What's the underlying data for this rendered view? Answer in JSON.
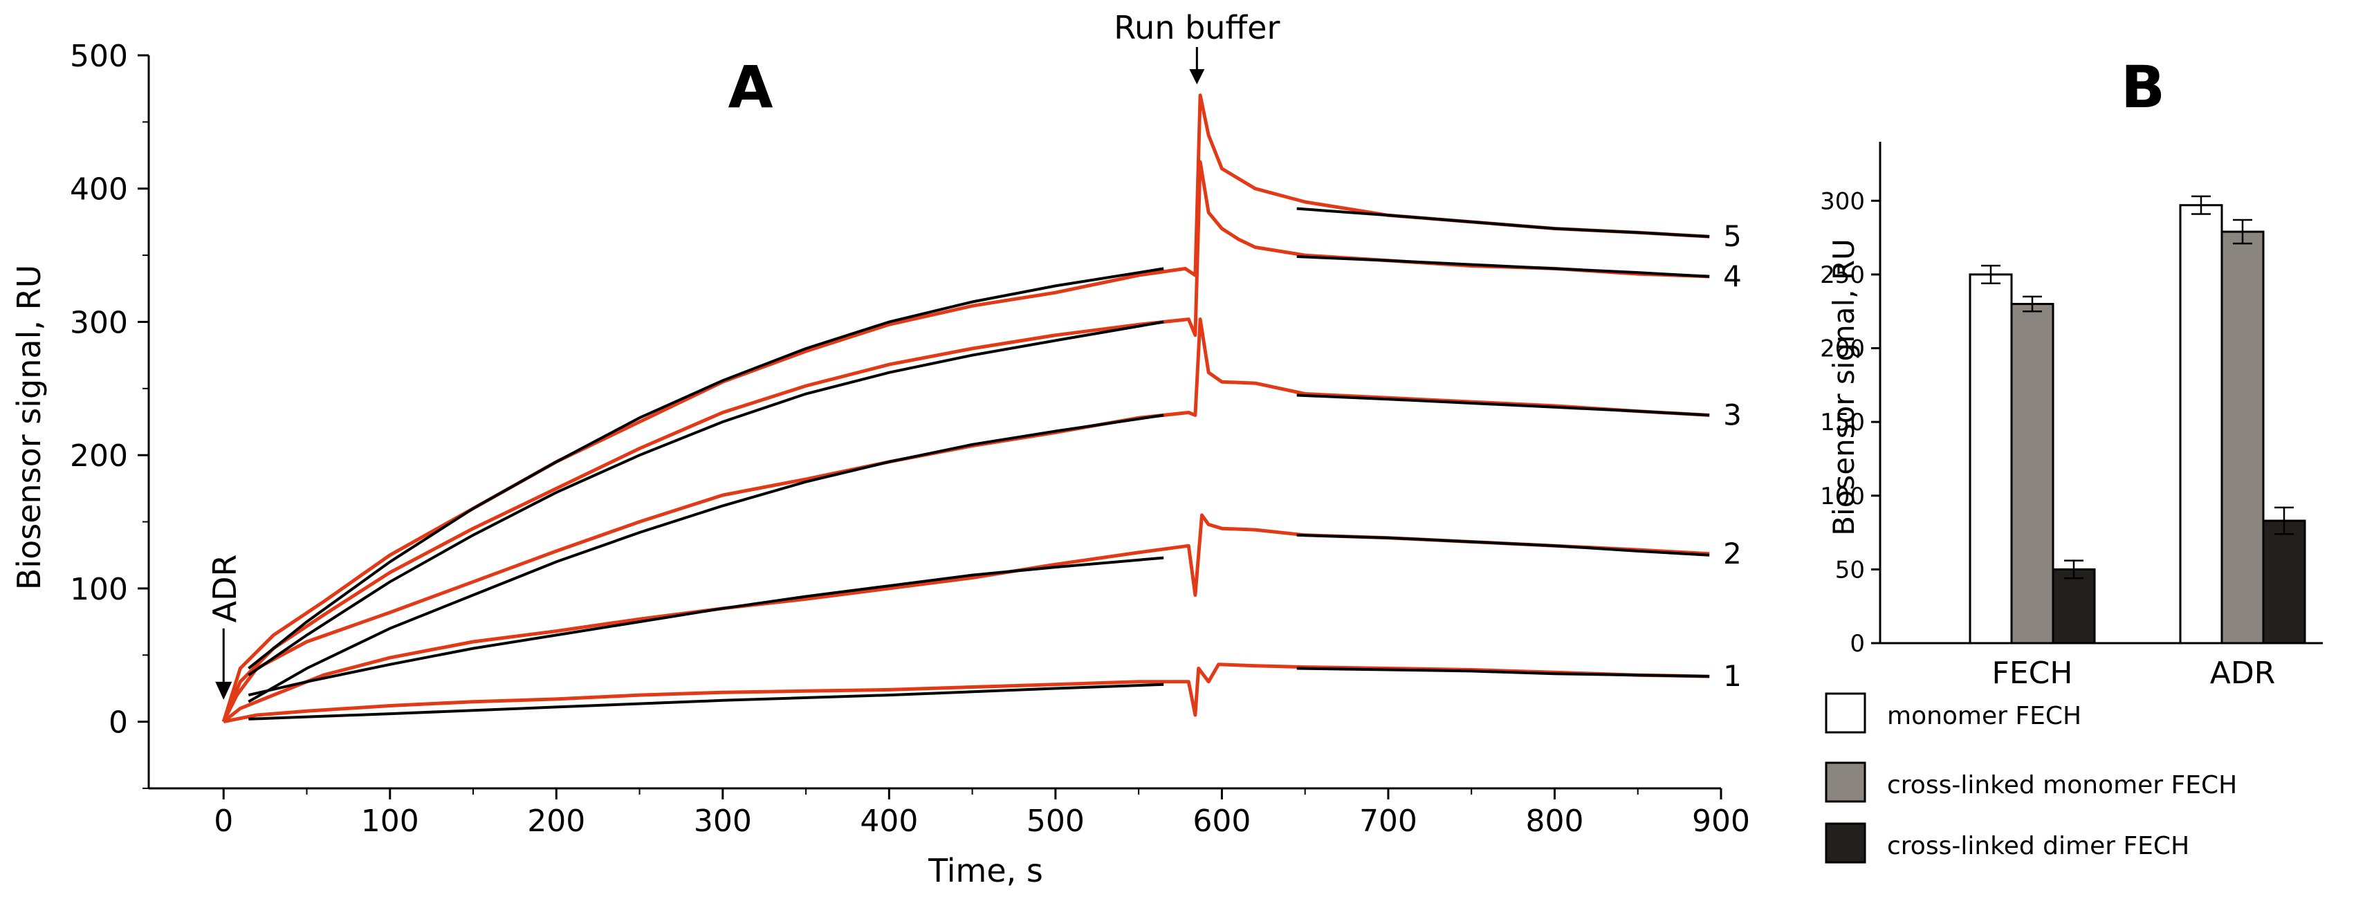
{
  "chart_data": [
    {
      "type": "line",
      "panel": "A",
      "title": "",
      "xlabel": "Time, s",
      "ylabel": "Biosensor signal, RU",
      "xlim": [
        -45,
        900
      ],
      "ylim": [
        -50,
        500
      ],
      "xticks": [
        0,
        100,
        200,
        300,
        400,
        500,
        600,
        700,
        800,
        900
      ],
      "yticks": [
        0,
        100,
        200,
        300,
        400,
        500
      ],
      "annotations": {
        "injection": {
          "label": "ADR",
          "x": 0
        },
        "wash": {
          "label": "Run buffer",
          "x": 585
        }
      },
      "series": [
        {
          "name": "1",
          "experimental": [
            [
              0,
              0
            ],
            [
              20,
              5
            ],
            [
              50,
              8
            ],
            [
              100,
              12
            ],
            [
              150,
              15
            ],
            [
              200,
              17
            ],
            [
              250,
              20
            ],
            [
              300,
              22
            ],
            [
              350,
              23
            ],
            [
              400,
              24
            ],
            [
              450,
              26
            ],
            [
              500,
              28
            ],
            [
              550,
              30
            ],
            [
              580,
              30
            ],
            [
              584,
              5
            ],
            [
              586,
              40
            ],
            [
              592,
              30
            ],
            [
              598,
              43
            ],
            [
              620,
              42
            ],
            [
              650,
              41
            ],
            [
              700,
              40
            ],
            [
              750,
              39
            ],
            [
              800,
              37
            ],
            [
              850,
              35
            ],
            [
              893,
              34
            ]
          ],
          "fit_association": [
            [
              15,
              2
            ],
            [
              100,
              6
            ],
            [
              200,
              11
            ],
            [
              300,
              16
            ],
            [
              400,
              20
            ],
            [
              500,
              25
            ],
            [
              565,
              28
            ]
          ],
          "fit_dissociation": [
            [
              645,
              40
            ],
            [
              700,
              39
            ],
            [
              750,
              38
            ],
            [
              800,
              36
            ],
            [
              850,
              35
            ],
            [
              893,
              34
            ]
          ]
        },
        {
          "name": "2",
          "experimental": [
            [
              0,
              0
            ],
            [
              10,
              10
            ],
            [
              30,
              20
            ],
            [
              60,
              35
            ],
            [
              100,
              48
            ],
            [
              150,
              60
            ],
            [
              200,
              68
            ],
            [
              250,
              77
            ],
            [
              300,
              85
            ],
            [
              350,
              92
            ],
            [
              400,
              100
            ],
            [
              450,
              108
            ],
            [
              500,
              118
            ],
            [
              550,
              127
            ],
            [
              580,
              132
            ],
            [
              584,
              95
            ],
            [
              588,
              155
            ],
            [
              592,
              148
            ],
            [
              600,
              145
            ],
            [
              620,
              144
            ],
            [
              650,
              140
            ],
            [
              700,
              138
            ],
            [
              750,
              135
            ],
            [
              800,
              132
            ],
            [
              850,
              129
            ],
            [
              893,
              126
            ]
          ],
          "fit_association": [
            [
              15,
              20
            ],
            [
              50,
              30
            ],
            [
              100,
              43
            ],
            [
              150,
              55
            ],
            [
              200,
              65
            ],
            [
              250,
              75
            ],
            [
              300,
              85
            ],
            [
              350,
              94
            ],
            [
              400,
              102
            ],
            [
              450,
              110
            ],
            [
              500,
              116
            ],
            [
              565,
              123
            ]
          ],
          "fit_dissociation": [
            [
              645,
              140
            ],
            [
              700,
              138
            ],
            [
              750,
              135
            ],
            [
              800,
              132
            ],
            [
              850,
              128
            ],
            [
              893,
              125
            ]
          ]
        },
        {
          "name": "3",
          "experimental": [
            [
              0,
              0
            ],
            [
              8,
              20
            ],
            [
              20,
              40
            ],
            [
              50,
              60
            ],
            [
              100,
              82
            ],
            [
              150,
              105
            ],
            [
              200,
              128
            ],
            [
              250,
              150
            ],
            [
              300,
              170
            ],
            [
              350,
              182
            ],
            [
              400,
              195
            ],
            [
              450,
              207
            ],
            [
              500,
              217
            ],
            [
              550,
              228
            ],
            [
              580,
              232
            ],
            [
              584,
              230
            ],
            [
              587,
              302
            ],
            [
              592,
              262
            ],
            [
              600,
              255
            ],
            [
              620,
              254
            ],
            [
              650,
              246
            ],
            [
              700,
              243
            ],
            [
              750,
              240
            ],
            [
              800,
              237
            ],
            [
              850,
              233
            ],
            [
              893,
              230
            ]
          ],
          "fit_association": [
            [
              15,
              15
            ],
            [
              50,
              40
            ],
            [
              100,
              70
            ],
            [
              150,
              95
            ],
            [
              200,
              120
            ],
            [
              250,
              142
            ],
            [
              300,
              162
            ],
            [
              350,
              180
            ],
            [
              400,
              195
            ],
            [
              450,
              208
            ],
            [
              500,
              218
            ],
            [
              565,
              230
            ]
          ],
          "fit_dissociation": [
            [
              645,
              245
            ],
            [
              700,
              242
            ],
            [
              750,
              239
            ],
            [
              800,
              236
            ],
            [
              850,
              233
            ],
            [
              893,
              230
            ]
          ]
        },
        {
          "name": "4",
          "experimental": [
            [
              0,
              0
            ],
            [
              10,
              30
            ],
            [
              30,
              55
            ],
            [
              60,
              80
            ],
            [
              100,
              112
            ],
            [
              150,
              145
            ],
            [
              200,
              175
            ],
            [
              250,
              205
            ],
            [
              300,
              232
            ],
            [
              350,
              252
            ],
            [
              400,
              268
            ],
            [
              450,
              280
            ],
            [
              500,
              290
            ],
            [
              550,
              298
            ],
            [
              580,
              302
            ],
            [
              584,
              290
            ],
            [
              587,
              420
            ],
            [
              592,
              382
            ],
            [
              600,
              370
            ],
            [
              610,
              362
            ],
            [
              620,
              356
            ],
            [
              650,
              350
            ],
            [
              700,
              346
            ],
            [
              750,
              342
            ],
            [
              800,
              340
            ],
            [
              850,
              336
            ],
            [
              893,
              334
            ]
          ],
          "fit_association": [
            [
              15,
              35
            ],
            [
              50,
              65
            ],
            [
              100,
              105
            ],
            [
              150,
              140
            ],
            [
              200,
              172
            ],
            [
              250,
              200
            ],
            [
              300,
              225
            ],
            [
              350,
              246
            ],
            [
              400,
              262
            ],
            [
              450,
              275
            ],
            [
              500,
              286
            ],
            [
              565,
              300
            ]
          ],
          "fit_dissociation": [
            [
              645,
              349
            ],
            [
              700,
              346
            ],
            [
              750,
              343
            ],
            [
              800,
              340
            ],
            [
              850,
              337
            ],
            [
              893,
              334
            ]
          ]
        },
        {
          "name": "5",
          "experimental": [
            [
              0,
              0
            ],
            [
              10,
              40
            ],
            [
              30,
              65
            ],
            [
              60,
              90
            ],
            [
              100,
              125
            ],
            [
              150,
              160
            ],
            [
              200,
              195
            ],
            [
              250,
              225
            ],
            [
              300,
              255
            ],
            [
              350,
              278
            ],
            [
              400,
              298
            ],
            [
              450,
              312
            ],
            [
              500,
              322
            ],
            [
              550,
              335
            ],
            [
              578,
              340
            ],
            [
              584,
              335
            ],
            [
              587,
              470
            ],
            [
              592,
              440
            ],
            [
              600,
              415
            ],
            [
              620,
              400
            ],
            [
              650,
              390
            ],
            [
              700,
              380
            ],
            [
              750,
              375
            ],
            [
              800,
              370
            ],
            [
              850,
              367
            ],
            [
              893,
              364
            ]
          ],
          "fit_association": [
            [
              15,
              40
            ],
            [
              50,
              75
            ],
            [
              100,
              120
            ],
            [
              150,
              160
            ],
            [
              200,
              195
            ],
            [
              250,
              228
            ],
            [
              300,
              256
            ],
            [
              350,
              280
            ],
            [
              400,
              300
            ],
            [
              450,
              315
            ],
            [
              500,
              327
            ],
            [
              565,
              340
            ]
          ],
          "fit_dissociation": [
            [
              645,
              385
            ],
            [
              700,
              380
            ],
            [
              750,
              375
            ],
            [
              800,
              370
            ],
            [
              850,
              367
            ],
            [
              893,
              364
            ]
          ]
        }
      ]
    },
    {
      "type": "bar",
      "panel": "B",
      "title": "",
      "xlabel": "",
      "ylabel": "Biosensor signal, RU",
      "ylim": [
        0,
        340
      ],
      "yticks": [
        0,
        50,
        100,
        150,
        200,
        250,
        300
      ],
      "categories": [
        "FECH",
        "ADR"
      ],
      "series": [
        {
          "name": "monomer FECH",
          "color": "#ffffff",
          "values": [
            250,
            297
          ],
          "errors": [
            6,
            6
          ]
        },
        {
          "name": "cross-linked monomer FECH",
          "color": "#8b8580",
          "values": [
            230,
            279
          ],
          "errors": [
            5,
            8
          ]
        },
        {
          "name": "cross-linked dimer FECH",
          "color": "#231f1c",
          "values": [
            50,
            83
          ],
          "errors": [
            6,
            9
          ]
        }
      ]
    }
  ],
  "panel_labels": {
    "a": "A",
    "b": "B"
  },
  "colors": {
    "experimental": "#e23a17",
    "fit": "#000000",
    "axis": "#000000"
  }
}
